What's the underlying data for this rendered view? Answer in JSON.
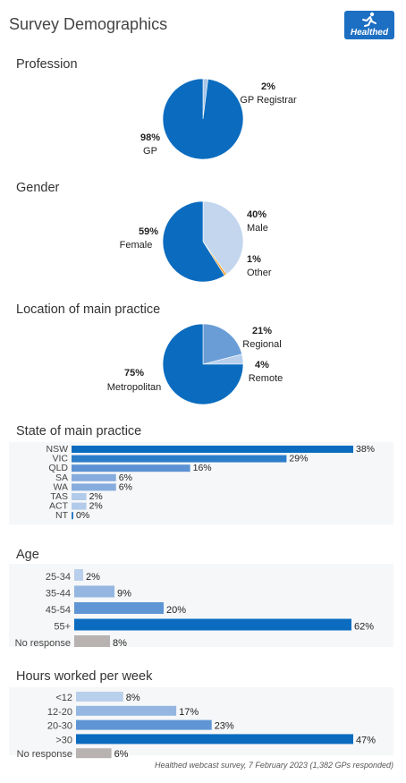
{
  "page": {
    "title": "Survey Demographics",
    "brand": "Healthed",
    "footnote": "Healthed webcast survey, 7 February 2023 (1,382 GPs responded)"
  },
  "chart_data": [
    {
      "type": "pie",
      "title": "Profession",
      "slices": [
        {
          "label": "GP Registrar",
          "value": 2,
          "pct_label": "2%",
          "color": "#a8c6e8"
        },
        {
          "label": "GP",
          "value": 98,
          "pct_label": "98%",
          "color": "#0b6cbf"
        }
      ]
    },
    {
      "type": "pie",
      "title": "Gender",
      "slices": [
        {
          "label": "Male",
          "value": 40,
          "pct_label": "40%",
          "color": "#c3d6ee"
        },
        {
          "label": "Other",
          "value": 1,
          "pct_label": "1%",
          "color": "#f0a43a"
        },
        {
          "label": "Female",
          "value": 59,
          "pct_label": "59%",
          "color": "#0b6cbf"
        }
      ]
    },
    {
      "type": "pie",
      "title": "Location of main practice",
      "slices": [
        {
          "label": "Regional",
          "value": 21,
          "pct_label": "21%",
          "color": "#6a9dd6"
        },
        {
          "label": "Remote",
          "value": 4,
          "pct_label": "4%",
          "color": "#b7cfec"
        },
        {
          "label": "Metropolitan",
          "value": 75,
          "pct_label": "75%",
          "color": "#0b6cbf"
        }
      ]
    },
    {
      "type": "bar",
      "title": "State of main practice",
      "categories": [
        "NSW",
        "VIC",
        "QLD",
        "SA",
        "WA",
        "TAS",
        "ACT",
        "NT"
      ],
      "values": [
        38,
        29,
        16,
        6,
        6,
        2,
        2,
        0
      ],
      "value_labels": [
        "38%",
        "29%",
        "16%",
        "6%",
        "6%",
        "2%",
        "2%",
        "0%"
      ],
      "colors": [
        "#0b6cbf",
        "#2b7dca",
        "#5c92d3",
        "#86acde",
        "#86acde",
        "#b3cbea",
        "#b3cbea",
        "#2b7dca"
      ],
      "xlim": [
        0,
        38
      ]
    },
    {
      "type": "bar",
      "title": "Age",
      "categories": [
        "25-34",
        "35-44",
        "45-54",
        "55+",
        "No response"
      ],
      "values": [
        2,
        9,
        20,
        62,
        8
      ],
      "value_labels": [
        "2%",
        "9%",
        "20%",
        "62%",
        "8%"
      ],
      "colors": [
        "#b9d0ec",
        "#94b6e1",
        "#5f95d4",
        "#0b6cbf",
        "#b8b2b0"
      ],
      "xlim": [
        0,
        62
      ]
    },
    {
      "type": "bar",
      "title": "Hours worked per week",
      "categories": [
        "<12",
        "12-20",
        "20-30",
        ">30",
        "No response"
      ],
      "values": [
        8,
        17,
        23,
        47,
        6
      ],
      "value_labels": [
        "8%",
        "17%",
        "23%",
        "47%",
        "6%"
      ],
      "colors": [
        "#b9d0ec",
        "#94b6e1",
        "#5f95d4",
        "#0b6cbf",
        "#b8b2b0"
      ],
      "xlim": [
        0,
        47
      ]
    }
  ]
}
